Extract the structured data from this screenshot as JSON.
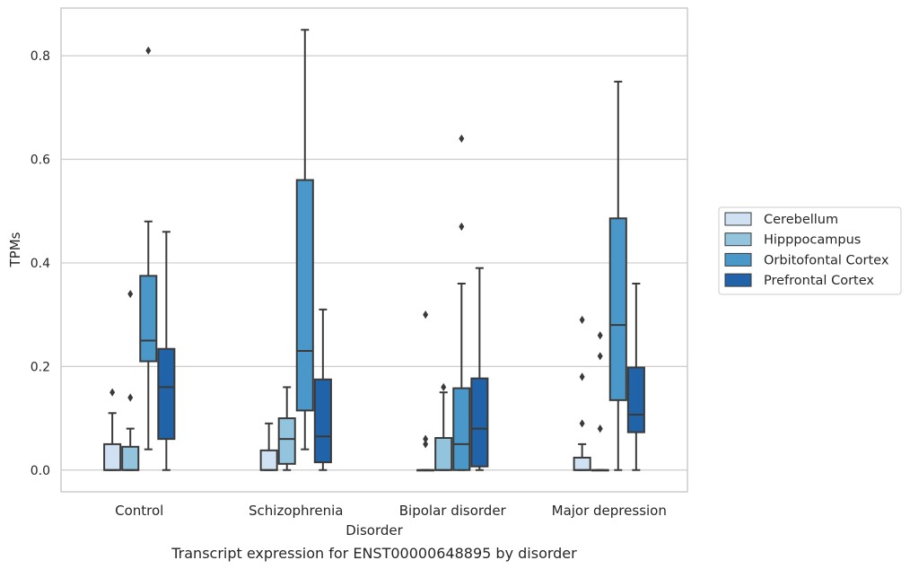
{
  "chart_data": {
    "type": "box",
    "title": "",
    "xlabel": "Disorder",
    "ylabel": "TPMs",
    "caption": "Transcript expression for ENST00000648895 by disorder",
    "categories": [
      "Control",
      "Schizophrenia",
      "Bipolar disorder",
      "Major depression"
    ],
    "ylim": [
      -0.042,
      0.892
    ],
    "yticks": [
      "0.0",
      "0.2",
      "0.4",
      "0.6",
      "0.8"
    ],
    "grid": "horizontal",
    "legend_position": "right",
    "series": [
      {
        "name": "Cerebellum",
        "color": "#cfe1f2",
        "boxes": [
          {
            "whisker_low": 0.0,
            "q1": 0.0,
            "median": 0.0,
            "q3": 0.05,
            "whisker_high": 0.11,
            "outliers": [
              0.15
            ]
          },
          {
            "whisker_low": 0.0,
            "q1": 0.0,
            "median": 0.0,
            "q3": 0.038,
            "whisker_high": 0.09,
            "outliers": []
          },
          {
            "whisker_low": 0.0,
            "q1": 0.0,
            "median": 0.0,
            "q3": 0.0,
            "whisker_high": 0.0,
            "outliers": [
              0.3,
              0.06,
              0.05
            ]
          },
          {
            "whisker_low": 0.0,
            "q1": 0.0,
            "median": 0.0,
            "q3": 0.024,
            "whisker_high": 0.05,
            "outliers": [
              0.29,
              0.18,
              0.09
            ]
          }
        ]
      },
      {
        "name": "Hipppocampus",
        "color": "#93c4de",
        "boxes": [
          {
            "whisker_low": 0.0,
            "q1": 0.0,
            "median": 0.0,
            "q3": 0.045,
            "whisker_high": 0.08,
            "outliers": [
              0.34,
              0.14
            ]
          },
          {
            "whisker_low": 0.0,
            "q1": 0.012,
            "median": 0.06,
            "q3": 0.1,
            "whisker_high": 0.16,
            "outliers": []
          },
          {
            "whisker_low": 0.0,
            "q1": 0.0,
            "median": 0.0,
            "q3": 0.062,
            "whisker_high": 0.15,
            "outliers": [
              0.16
            ]
          },
          {
            "whisker_low": 0.0,
            "q1": 0.0,
            "median": 0.0,
            "q3": 0.0,
            "whisker_high": 0.0,
            "outliers": [
              0.26,
              0.22,
              0.08
            ]
          }
        ]
      },
      {
        "name": "Orbitofontal Cortex",
        "color": "#4a98c9",
        "boxes": [
          {
            "whisker_low": 0.04,
            "q1": 0.21,
            "median": 0.25,
            "q3": 0.375,
            "whisker_high": 0.48,
            "outliers": [
              0.81
            ]
          },
          {
            "whisker_low": 0.04,
            "q1": 0.115,
            "median": 0.23,
            "q3": 0.56,
            "whisker_high": 0.85,
            "outliers": []
          },
          {
            "whisker_low": 0.0,
            "q1": 0.0,
            "median": 0.05,
            "q3": 0.158,
            "whisker_high": 0.36,
            "outliers": [
              0.64,
              0.47
            ]
          },
          {
            "whisker_low": 0.0,
            "q1": 0.135,
            "median": 0.28,
            "q3": 0.486,
            "whisker_high": 0.75,
            "outliers": []
          }
        ]
      },
      {
        "name": "Prefrontal Cortex",
        "color": "#2163a8",
        "boxes": [
          {
            "whisker_low": 0.0,
            "q1": 0.06,
            "median": 0.16,
            "q3": 0.234,
            "whisker_high": 0.46,
            "outliers": []
          },
          {
            "whisker_low": 0.0,
            "q1": 0.015,
            "median": 0.065,
            "q3": 0.175,
            "whisker_high": 0.31,
            "outliers": []
          },
          {
            "whisker_low": 0.0,
            "q1": 0.007,
            "median": 0.08,
            "q3": 0.177,
            "whisker_high": 0.39,
            "outliers": []
          },
          {
            "whisker_low": 0.0,
            "q1": 0.073,
            "median": 0.107,
            "q3": 0.198,
            "whisker_high": 0.36,
            "outliers": []
          }
        ]
      }
    ]
  }
}
